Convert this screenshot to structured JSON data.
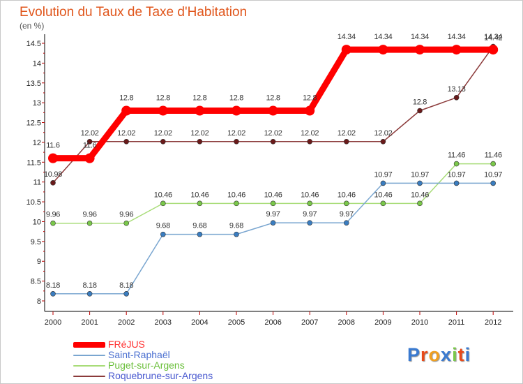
{
  "chart_data": {
    "type": "line",
    "title": "Evolution du Taux de Taxe d'Habitation",
    "ylabel": "(en %)",
    "xlabel": "",
    "ylim": [
      8,
      14.5
    ],
    "yticks": [
      "8",
      "8.5",
      "9",
      "9.5",
      "10",
      "10.5",
      "11",
      "11.5",
      "12",
      "12.5",
      "13",
      "13.5",
      "14",
      "14.5"
    ],
    "categories": [
      "2000",
      "2001",
      "2002",
      "2003",
      "2004",
      "2005",
      "2006",
      "2007",
      "2008",
      "2009",
      "2010",
      "2011",
      "2012"
    ],
    "grid": false,
    "legend_position": "bottom-left",
    "series": [
      {
        "name": "FRéJUS",
        "color": "#ff0000",
        "text_color": "#ff0000",
        "values": [
          11.6,
          11.6,
          12.8,
          12.8,
          12.8,
          12.8,
          12.8,
          12.8,
          14.34,
          14.34,
          14.34,
          14.34,
          14.34
        ],
        "labels": [
          "11.6",
          "11.6",
          "12.8",
          "12.8",
          "12.8",
          "12.8",
          "12.8",
          "12.8",
          "14.34",
          "14.34",
          "14.34",
          "14.34",
          "14.34"
        ]
      },
      {
        "name": "Saint-Raphaël",
        "color": "#7aa6d0",
        "marker_color": "#3a7dc0",
        "text_color": "#4a6fd0",
        "values": [
          8.18,
          8.18,
          8.18,
          9.68,
          9.68,
          9.68,
          9.97,
          9.97,
          9.97,
          10.97,
          10.97,
          10.97,
          10.97
        ],
        "labels": [
          "8.18",
          "8.18",
          "8.18",
          "9.68",
          "9.68",
          "9.68",
          "9.97",
          "9.97",
          "9.97",
          "10.97",
          "10.97",
          "10.97",
          "10.97"
        ]
      },
      {
        "name": "Puget-sur-Argens",
        "color": "#a8dc78",
        "marker_color": "#7ac84a",
        "text_color": "#6abf3a",
        "values": [
          9.96,
          9.96,
          9.96,
          10.46,
          10.46,
          10.46,
          10.46,
          10.46,
          10.46,
          10.46,
          10.46,
          11.46,
          11.46
        ],
        "labels": [
          "9.96",
          "9.96",
          "9.96",
          "10.46",
          "10.46",
          "10.46",
          "10.46",
          "10.46",
          "10.46",
          "10.46",
          "10.46",
          "11.46",
          "11.46"
        ]
      },
      {
        "name": "Roquebrune-sur-Argens",
        "color": "#8b3a3a",
        "marker_color": "#6a1a1a",
        "text_color": "#7a2a2a",
        "values": [
          10.98,
          12.02,
          12.02,
          12.02,
          12.02,
          12.02,
          12.02,
          12.02,
          12.02,
          12.02,
          12.8,
          13.13,
          14.42
        ],
        "labels": [
          "10.98",
          "12.02",
          "12.02",
          "12.02",
          "12.02",
          "12.02",
          "12.02",
          "12.02",
          "12.02",
          "12.02",
          "12.8",
          "13.13",
          "14.42"
        ]
      }
    ]
  },
  "logo": {
    "letters": [
      "P",
      "r",
      "o",
      "x",
      "i",
      "t",
      "i"
    ],
    "colors": [
      "#3a7ad0",
      "#e84a1a",
      "#f0a020",
      "#3a7ad0",
      "#7ac84a",
      "#e84a1a",
      "#3a7ad0"
    ]
  }
}
